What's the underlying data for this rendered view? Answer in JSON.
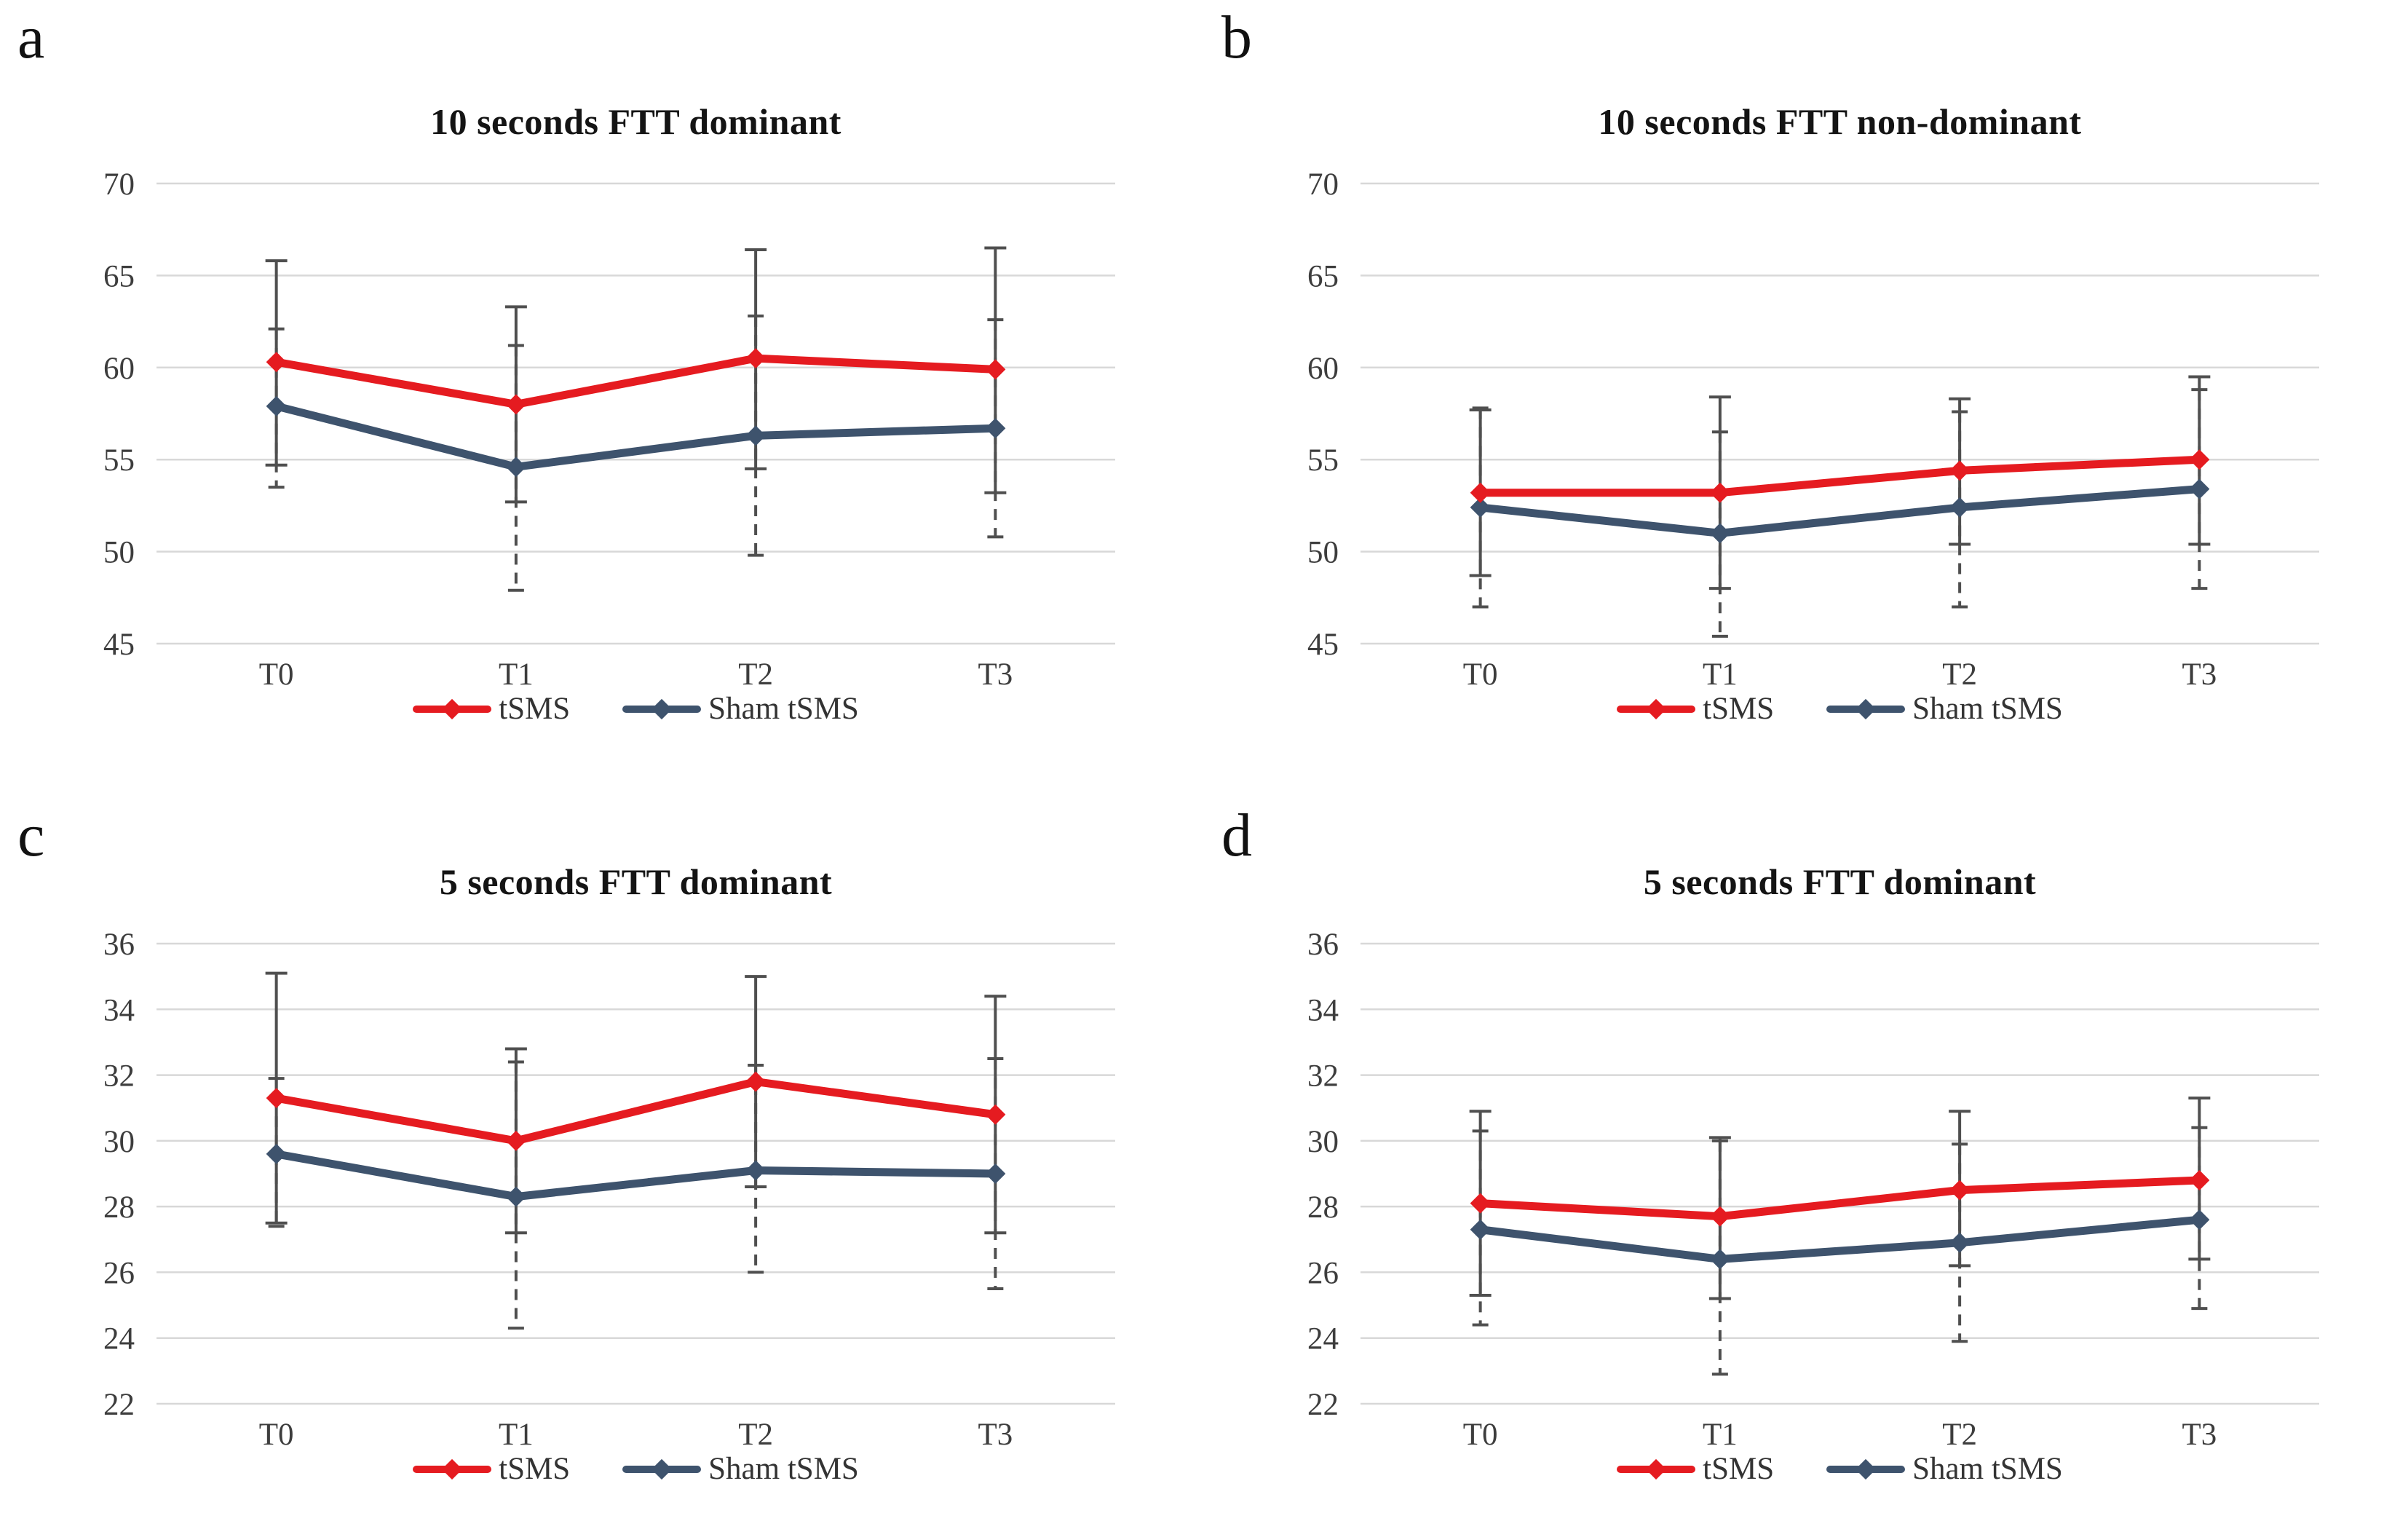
{
  "figure": {
    "background": "#ffffff"
  },
  "colors": {
    "tsms": "#e51b20",
    "sham": "#3e536d",
    "grid": "#d8d8d8",
    "error": "#4f4f4f",
    "text": "#3d3d3d"
  },
  "legend": {
    "tsms_label": "tSMS",
    "sham_label": "Sham tSMS"
  },
  "chart_data": [
    {
      "letter": "a",
      "type": "line",
      "title": "10 seconds FTT dominant",
      "categories": [
        "T0",
        "T1",
        "T2",
        "T3"
      ],
      "ylim": [
        45,
        70
      ],
      "ytick_step": 5,
      "grid": true,
      "legend_position": "bottom",
      "series": [
        {
          "name": "tSMS",
          "color": "tsms",
          "error_style": "solid",
          "values": [
            60.3,
            58.0,
            60.5,
            59.9
          ],
          "err_hi": [
            65.8,
            63.3,
            66.4,
            66.5
          ],
          "err_lo": [
            54.7,
            52.7,
            54.5,
            53.2
          ]
        },
        {
          "name": "Sham tSMS",
          "color": "sham",
          "error_style": "dashed",
          "values": [
            57.9,
            54.6,
            56.3,
            56.7
          ],
          "err_hi": [
            62.1,
            61.2,
            62.8,
            62.6
          ],
          "err_lo": [
            53.5,
            47.9,
            49.8,
            50.8
          ]
        }
      ]
    },
    {
      "letter": "b",
      "type": "line",
      "title": "10 seconds FTT non-dominant",
      "categories": [
        "T0",
        "T1",
        "T2",
        "T3"
      ],
      "ylim": [
        45,
        70
      ],
      "ytick_step": 5,
      "grid": true,
      "legend_position": "bottom",
      "series": [
        {
          "name": "tSMS",
          "color": "tsms",
          "error_style": "solid",
          "values": [
            53.2,
            53.2,
            54.4,
            55.0
          ],
          "err_hi": [
            57.7,
            58.4,
            58.3,
            59.5
          ],
          "err_lo": [
            48.7,
            48.0,
            50.4,
            50.4
          ]
        },
        {
          "name": "Sham tSMS",
          "color": "sham",
          "error_style": "dashed",
          "values": [
            52.4,
            51.0,
            52.4,
            53.4
          ],
          "err_hi": [
            57.8,
            56.5,
            57.6,
            58.8
          ],
          "err_lo": [
            47.0,
            45.4,
            47.0,
            48.0
          ]
        }
      ]
    },
    {
      "letter": "c",
      "type": "line",
      "title": "5 seconds FTT dominant",
      "categories": [
        "T0",
        "T1",
        "T2",
        "T3"
      ],
      "ylim": [
        22,
        36
      ],
      "ytick_step": 2,
      "grid": true,
      "legend_position": "bottom",
      "series": [
        {
          "name": "tSMS",
          "color": "tsms",
          "error_style": "solid",
          "values": [
            31.3,
            30.0,
            31.8,
            30.8
          ],
          "err_hi": [
            35.1,
            32.8,
            35.0,
            34.4
          ],
          "err_lo": [
            27.5,
            27.2,
            28.6,
            27.2
          ]
        },
        {
          "name": "Sham tSMS",
          "color": "sham",
          "error_style": "dashed",
          "values": [
            29.6,
            28.3,
            29.1,
            29.0
          ],
          "err_hi": [
            31.9,
            32.4,
            32.3,
            32.5
          ],
          "err_lo": [
            27.4,
            24.3,
            26.0,
            25.5
          ]
        }
      ]
    },
    {
      "letter": "d",
      "type": "line",
      "title": "5 seconds FTT dominant",
      "categories": [
        "T0",
        "T1",
        "T2",
        "T3"
      ],
      "ylim": [
        22,
        36
      ],
      "ytick_step": 2,
      "grid": true,
      "legend_position": "bottom",
      "series": [
        {
          "name": "tSMS",
          "color": "tsms",
          "error_style": "solid",
          "values": [
            28.1,
            27.7,
            28.5,
            28.8
          ],
          "err_hi": [
            30.9,
            30.1,
            30.9,
            31.3
          ],
          "err_lo": [
            25.3,
            25.2,
            26.2,
            26.4
          ]
        },
        {
          "name": "Sham tSMS",
          "color": "sham",
          "error_style": "dashed",
          "values": [
            27.3,
            26.4,
            26.9,
            27.6
          ],
          "err_hi": [
            30.3,
            30.0,
            29.9,
            30.4
          ],
          "err_lo": [
            24.4,
            22.9,
            23.9,
            24.9
          ]
        }
      ]
    }
  ]
}
